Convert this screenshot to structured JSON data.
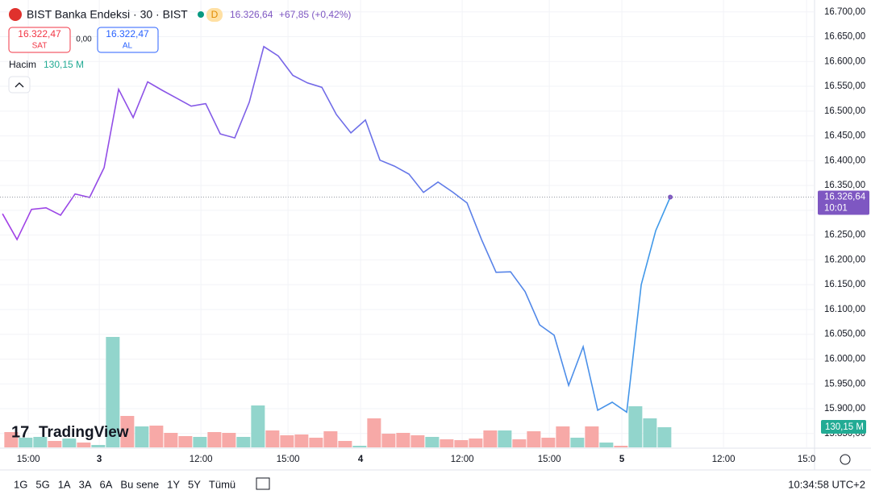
{
  "header": {
    "title": "BIST Banka Endeksi · 30 · BIST",
    "interval_badge": "D",
    "change": "+67,85 (+0,42%)",
    "sell_price": "16.322,47",
    "sell_label": "SAT",
    "spread": "0,00",
    "buy_price": "16.322,47",
    "buy_label": "AL",
    "volume_label": "Hacim",
    "volume_value": "130,15 M"
  },
  "chart_data": {
    "type": "line",
    "series": [
      {
        "colors": [
          "#a33ee6",
          "#3d9be9"
        ],
        "values": [
          16293,
          16241,
          16302,
          16305,
          16290,
          16333,
          16326,
          16386,
          16544,
          16487,
          16559,
          16542,
          16526,
          16510,
          16515,
          16454,
          16446,
          16518,
          16630,
          16611,
          16572,
          16557,
          16548,
          16493,
          16456,
          16482,
          16401,
          16389,
          16373,
          16336,
          16357,
          16337,
          16315,
          16241,
          16175,
          16176,
          16136,
          16069,
          16048,
          15947,
          16025,
          15897,
          15913,
          15893,
          16150,
          16259,
          16326.64
        ]
      }
    ],
    "x": [
      0,
      1,
      2,
      3,
      4,
      5,
      6,
      7,
      8,
      9,
      10,
      11,
      12,
      13,
      14,
      15,
      16,
      17,
      18,
      19,
      20,
      21,
      22,
      23,
      24,
      25,
      26,
      27,
      28,
      29,
      30,
      31,
      32,
      33,
      34,
      35,
      36,
      37,
      38,
      39,
      40,
      41,
      42,
      43,
      44,
      45,
      46
    ],
    "xlim": [
      -0.17,
      55.94
    ],
    "xticks": [
      {
        "value": 1.78,
        "label": "15:00"
      },
      {
        "value": 6.67,
        "label": "3"
      },
      {
        "value": 13.67,
        "label": "12:00"
      },
      {
        "value": 19.67,
        "label": "15:00"
      },
      {
        "value": 24.67,
        "label": "4"
      },
      {
        "value": 31.67,
        "label": "12:00"
      },
      {
        "value": 37.67,
        "label": "15:00"
      },
      {
        "value": 42.67,
        "label": "5"
      },
      {
        "value": 49.67,
        "label": "12:00"
      },
      {
        "value": 55.39,
        "label": "15:0"
      }
    ],
    "ylim": [
      15822,
      16724
    ],
    "yticks": [
      {
        "value": 16700,
        "label": "16.700,00"
      },
      {
        "value": 16650,
        "label": "16.650,00"
      },
      {
        "value": 16600,
        "label": "16.600,00"
      },
      {
        "value": 16550,
        "label": "16.550,00"
      },
      {
        "value": 16500,
        "label": "16.500,00"
      },
      {
        "value": 16450,
        "label": "16.450,00"
      },
      {
        "value": 16400,
        "label": "16.400,00"
      },
      {
        "value": 16350,
        "label": "16.350,00"
      },
      {
        "value": 16300,
        "label": "16.300,00"
      },
      {
        "value": 16250,
        "label": "16.250,00"
      },
      {
        "value": 16200,
        "label": "16.200,00"
      },
      {
        "value": 16150,
        "label": "16.150,00"
      },
      {
        "value": 16100,
        "label": "16.100,00"
      },
      {
        "value": 16050,
        "label": "16.050,00"
      },
      {
        "value": 16000,
        "label": "16.000,00"
      },
      {
        "value": 15950,
        "label": "15.950,00"
      },
      {
        "value": 15900,
        "label": "15.900,00"
      },
      {
        "value": 15850,
        "label": "15.850,00"
      }
    ],
    "grid": true,
    "last_price": {
      "value": 16326.64,
      "label": "16.326,64"
    },
    "last_time": "10:01",
    "volume": {
      "ylim": [
        0,
        2889
      ],
      "up_color": "#92d5cc",
      "down_color": "#f7a9a7",
      "directions": [
        "down",
        "up",
        "up",
        "down",
        "up",
        "down",
        "up",
        "up",
        "down",
        "up",
        "down",
        "down",
        "down",
        "up",
        "down",
        "down",
        "up",
        "up",
        "down",
        "down",
        "down",
        "down",
        "down",
        "down",
        "up",
        "down",
        "down",
        "down",
        "down",
        "up",
        "down",
        "down",
        "down",
        "down",
        "up",
        "down",
        "down",
        "down",
        "down",
        "up",
        "down",
        "up",
        "down",
        "up",
        "up",
        "up"
      ],
      "values": [
        98.9,
        62.5,
        67.7,
        41.6,
        57.3,
        31.2,
        15.6,
        713.2,
        203,
        135.4,
        140.6,
        93.7,
        72.9,
        67.7,
        98.9,
        93.7,
        67.7,
        270.7,
        109.3,
        78.1,
        83.3,
        62.5,
        104.1,
        41.6,
        10.4,
        187.4,
        88.5,
        93.7,
        78.1,
        67.7,
        52.1,
        46.9,
        57.3,
        109.3,
        109.3,
        52.1,
        104.1,
        62.5,
        135.4,
        62.5,
        135.4,
        31.2,
        10.4,
        265.5,
        187.4,
        130.15
      ],
      "last_label": "130,15 M"
    },
    "logo": "TradingView",
    "ranges": [
      "1G",
      "5G",
      "1A",
      "3A",
      "6A",
      "Bu sene",
      "1Y",
      "5Y",
      "Tümü"
    ],
    "clock": "10:34:58 UTC+2"
  }
}
